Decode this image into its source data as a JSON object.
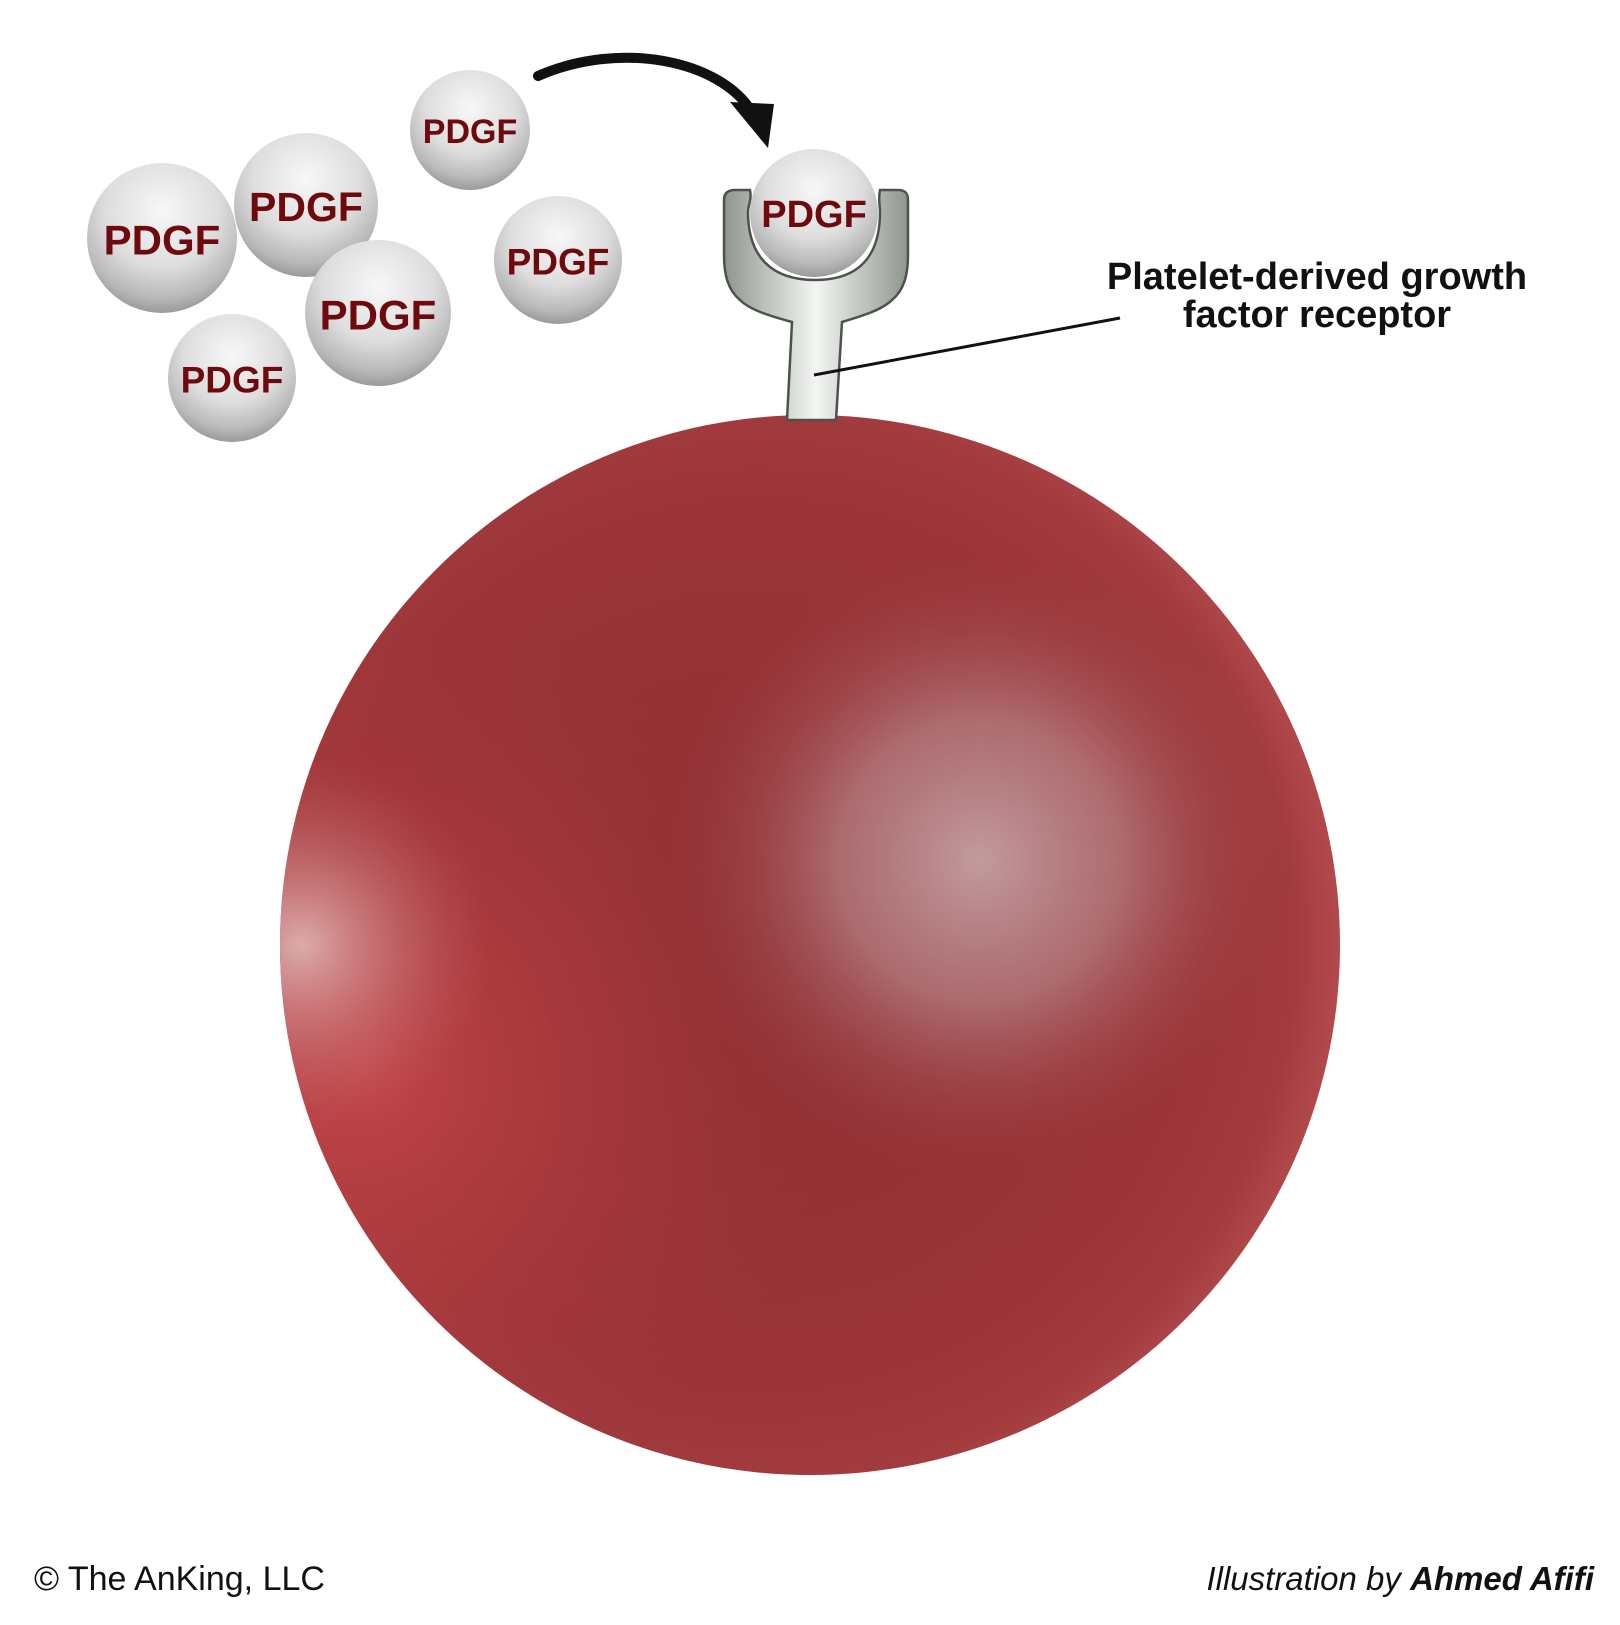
{
  "ligand_label": "PDGF",
  "receptor_label": {
    "line1": "Platelet-derived growth",
    "line2": "factor receptor"
  },
  "footer": {
    "copyright": "© The AnKing, LLC",
    "credit_prefix": "Illustration by ",
    "credit_author": "Ahmed Afifi"
  },
  "colors": {
    "cell": "#9b3236",
    "cell_highlight": "#b98c90",
    "cell_rim_light": "#c24a4d",
    "ligand_fill": "#d8d8d8",
    "ligand_text": "#6e0a0e",
    "receptor_fill": "#a9b0a8",
    "arrow": "#111111"
  },
  "icons": {
    "arrow": "curved-arrow-icon",
    "leader": "leader-line"
  }
}
